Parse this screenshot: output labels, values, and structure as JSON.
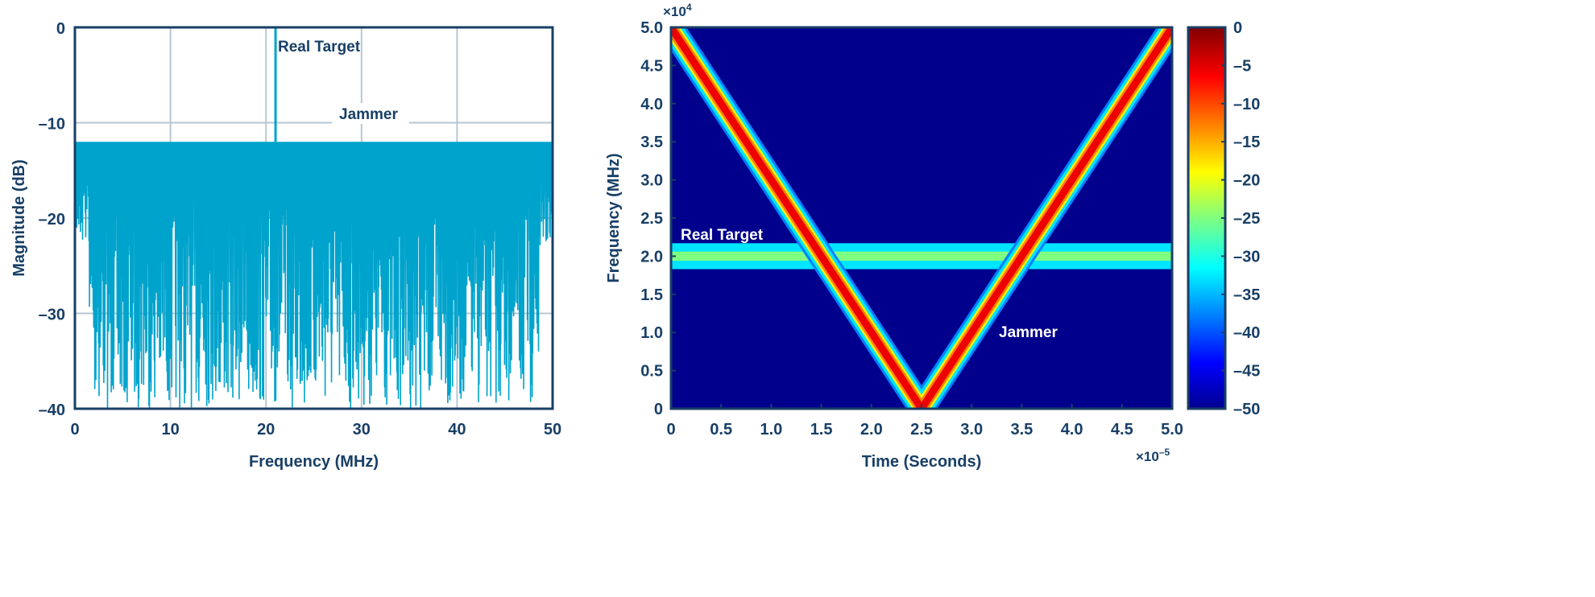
{
  "chart_data": [
    {
      "type": "line",
      "xlabel": "Frequency (MHz)",
      "ylabel": "Magnitude (dB)",
      "xlim": [
        0,
        50
      ],
      "ylim": [
        -40,
        0
      ],
      "xticks": [
        "0",
        "10",
        "20",
        "30",
        "40",
        "50"
      ],
      "yticks": [
        "0",
        "–10",
        "–20",
        "–30",
        "–40"
      ],
      "grid": true,
      "line_color": "#00a3cc",
      "jammer_level_db": -12,
      "jammer_band_mhz": [
        0,
        50
      ],
      "real_target": {
        "frequency_mhz": 21,
        "magnitude_db": 0
      },
      "annotations": [
        "Real Target",
        "Jammer"
      ]
    },
    {
      "type": "heatmap",
      "xlabel": "Time (Seconds)",
      "ylabel": "Frequency (MHz)",
      "x_multiplier": "×10",
      "x_multiplier_exp": "–5",
      "y_multiplier": "×10",
      "y_multiplier_exp": "4",
      "xlim": [
        0,
        5.0
      ],
      "ylim": [
        0,
        5.0
      ],
      "xticks": [
        "0",
        "0.5",
        "1.0",
        "1.5",
        "2.0",
        "2.5",
        "3.0",
        "3.5",
        "4.0",
        "4.5",
        "5.0"
      ],
      "yticks": [
        "0",
        "0.5",
        "1.0",
        "1.5",
        "2.0",
        "2.5",
        "3.0",
        "3.5",
        "4.0",
        "4.5",
        "5.0"
      ],
      "jammer_chirp": [
        {
          "t": 0,
          "f": 5.0
        },
        {
          "t": 2.5,
          "f": 0
        },
        {
          "t": 5.0,
          "f": 5.0
        }
      ],
      "real_target_freq": 2.0,
      "colorbar": {
        "range": [
          -50,
          0
        ],
        "colormap": "jet",
        "ticks": [
          "0",
          "–5",
          "–10",
          "–15",
          "–20",
          "–25",
          "–30",
          "–35",
          "–40",
          "–45",
          "–50"
        ]
      },
      "annotations": [
        "Real Target",
        "Jammer"
      ]
    }
  ]
}
